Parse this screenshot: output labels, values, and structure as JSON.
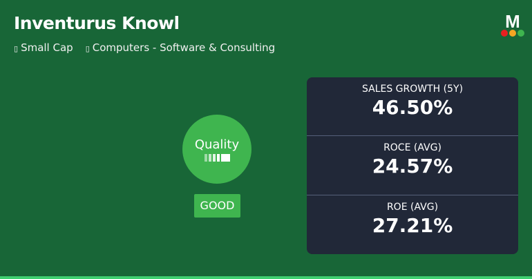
{
  "company": {
    "name": "Inventurus Knowl",
    "tags": [
      {
        "icon": "tag-icon",
        "label": "Small Cap"
      },
      {
        "icon": "tag-icon",
        "label": "Computers - Software & Consulting"
      }
    ]
  },
  "logo": {
    "letter": "M",
    "dot_colors": [
      "#e82020",
      "#f5a623",
      "#3fb54f"
    ]
  },
  "quality": {
    "label": "Quality",
    "rating": "GOOD",
    "bars_filled": 5,
    "color": "#3fb54f"
  },
  "metrics": [
    {
      "label": "SALES GROWTH (5Y)",
      "value": "46.50%"
    },
    {
      "label": "ROCE (AVG)",
      "value": "24.57%"
    },
    {
      "label": "ROE (AVG)",
      "value": "27.21%"
    }
  ]
}
